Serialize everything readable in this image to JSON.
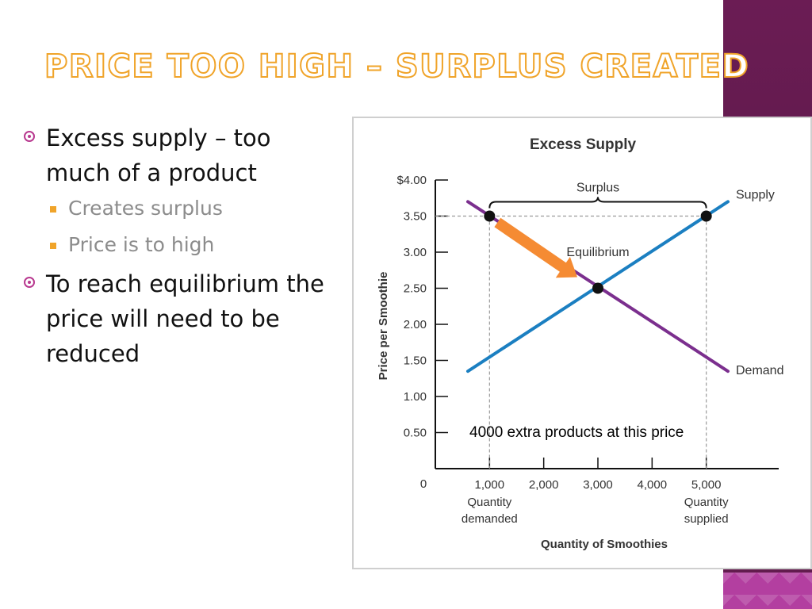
{
  "slide": {
    "title": "PRICE TOO HIGH – SURPLUS CREATED",
    "bullets": [
      {
        "text": "Excess supply – too much of a product",
        "sub": [
          "Creates surplus",
          "Price is to high"
        ]
      },
      {
        "text": "To reach equilibrium the price will need to be reduced",
        "sub": []
      }
    ]
  },
  "chart_data": {
    "type": "line",
    "title": "Excess Supply",
    "xlabel": "Quantity of Smoothies",
    "ylabel": "Price per Smoothie",
    "xlim": [
      0,
      6000
    ],
    "ylim": [
      0,
      4
    ],
    "x_ticks": [
      {
        "value": 1000,
        "label": "1,000",
        "sub": [
          "Quantity",
          "demanded"
        ]
      },
      {
        "value": 2000,
        "label": "2,000",
        "sub": []
      },
      {
        "value": 3000,
        "label": "3,000",
        "sub": []
      },
      {
        "value": 4000,
        "label": "4,000",
        "sub": []
      },
      {
        "value": 5000,
        "label": "5,000",
        "sub": [
          "Quantity",
          "supplied"
        ]
      }
    ],
    "y_ticks": [
      {
        "value": 0.5,
        "label": "0.50"
      },
      {
        "value": 1.0,
        "label": "1.00"
      },
      {
        "value": 1.5,
        "label": "1.50"
      },
      {
        "value": 2.0,
        "label": "2.00"
      },
      {
        "value": 2.5,
        "label": "2.50"
      },
      {
        "value": 3.0,
        "label": "3.00"
      },
      {
        "value": 3.5,
        "label": "3.50"
      },
      {
        "value": 4.0,
        "label": "$4.00"
      }
    ],
    "origin_label": "0",
    "series": [
      {
        "name": "Supply",
        "color": "#1b7fc1",
        "x": [
          600,
          5400
        ],
        "y": [
          1.35,
          3.7
        ]
      },
      {
        "name": "Demand",
        "color": "#7b2f8e",
        "x": [
          600,
          5400
        ],
        "y": [
          3.7,
          1.35
        ]
      }
    ],
    "points": [
      {
        "x": 1000,
        "y": 3.5
      },
      {
        "x": 3000,
        "y": 2.5
      },
      {
        "x": 5000,
        "y": 3.5
      }
    ],
    "annotations": {
      "surplus": "Surplus",
      "equilibrium": "Equilibrium",
      "overlay_text": "4000 extra products at this price"
    },
    "arrow_color": "#f58b33",
    "grid": false
  }
}
